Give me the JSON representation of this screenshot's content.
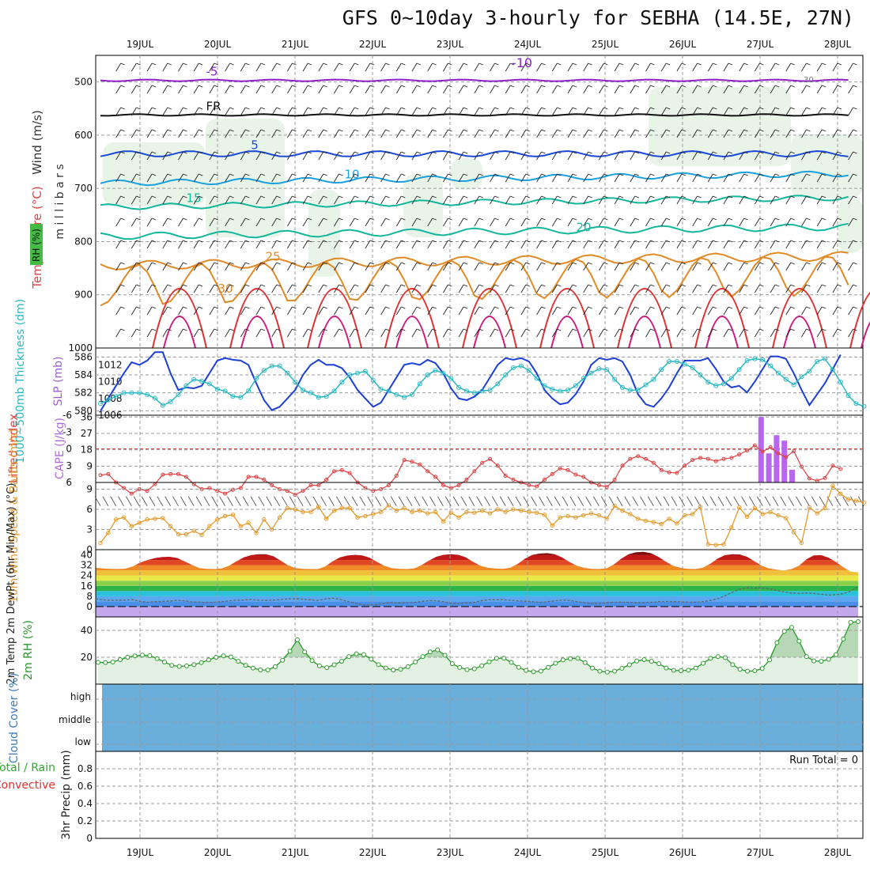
{
  "title": "GFS 0~10day 3-hourly for SEBHA (14.5E, 27N)",
  "dates": [
    "19JUL",
    "20JUL",
    "21JUL",
    "22JUL",
    "23JUL",
    "24JUL",
    "25JUL",
    "26JUL",
    "27JUL",
    "28JUL"
  ],
  "colors": {
    "grid": "#9a9a9a",
    "slp": "#1c3fd6",
    "thickness": "#2ab8c2",
    "lifted_index": "#e04040",
    "cape": "#b766ee",
    "wind": "#e39a2b",
    "rh": "#2a9a2a",
    "cloud": "#6aaedc",
    "temp_purple": "#8a22c8",
    "temp_blue": "#1c48d8",
    "temp_cyan": "#1aa0dc",
    "temp_teal": "#12b69a",
    "temp_orange": "#e08a26",
    "temp_red": "#e03030",
    "temp_magenta": "#d01a80"
  },
  "chart_data": [
    {
      "panel": "upper-air",
      "type": "heatmap",
      "ylabel": "m i l l i b a r s",
      "legend": [
        "Wind (m/s)",
        "Temperature (°C)",
        "RH (%)"
      ],
      "yticks": [
        500,
        600,
        700,
        800,
        900,
        1000
      ],
      "ylim": [
        450,
        1000
      ],
      "isotherm_labels": [
        "-10",
        "-5",
        "FR",
        "5",
        "10",
        "15",
        "20",
        "25",
        "30"
      ],
      "rh_labels": [
        "30"
      ]
    },
    {
      "panel": "thickness-slp",
      "type": "line",
      "ylabel_left": "1000~500mb Thickness (dm)",
      "ylabel_right": "SLP (mb)",
      "yticks_left": [
        580,
        582,
        584,
        586
      ],
      "yticks_right": [
        1006,
        1008,
        1010,
        1012
      ],
      "ylim_left": [
        579.5,
        587
      ],
      "ylim_right": [
        1006,
        1014
      ],
      "series": [
        {
          "name": "SLP (mb)",
          "axis": "right",
          "values": [
            1006.5,
            1008,
            1009.5,
            1011,
            1012.3,
            1012,
            1012.5,
            1013.5,
            1013.5,
            1011,
            1009,
            1009.3,
            1009.2,
            1009.5,
            1011,
            1012.5,
            1012.8,
            1012.6,
            1012.5,
            1012,
            1009.8,
            1007.8,
            1006.6,
            1007,
            1008,
            1009,
            1010.8,
            1012,
            1012.6,
            1012,
            1012,
            1011.6,
            1010.5,
            1009,
            1008,
            1007,
            1007.5,
            1009,
            1010.5,
            1012,
            1012.2,
            1012,
            1012.6,
            1012.2,
            1011,
            1009.2,
            1008,
            1007.8,
            1008.2,
            1009,
            1010.5,
            1012,
            1012.8,
            1012.6,
            1012.8,
            1012.4,
            1011,
            1009,
            1008,
            1007.3,
            1007.5,
            1008.5,
            1010,
            1012,
            1012.8,
            1012.6,
            1012.8,
            1012.4,
            1010.8,
            1008.5,
            1007.3,
            1007,
            1008,
            1009.3,
            1011,
            1012.5,
            1012.5,
            1012.5,
            1012.8,
            1011.5,
            1010,
            1009.3,
            1009.5,
            1008.7,
            1010,
            1011.5,
            1013,
            1013,
            1012.7,
            1011,
            1009,
            1007.2,
            1008.5,
            1009.8,
            1011.5,
            1013.2
          ]
        },
        {
          "name": "Thickness (dm)",
          "axis": "left",
          "values": [
            580.8,
            581.2,
            581.6,
            582,
            582,
            582,
            581.8,
            581.4,
            580.6,
            581,
            581.8,
            582.8,
            583.5,
            583.3,
            583,
            582.4,
            582.2,
            581.6,
            581.5,
            582.2,
            583.6,
            584.5,
            585,
            585,
            584.2,
            583.2,
            582.3,
            582,
            581.5,
            581.6,
            582.2,
            583.2,
            584,
            584.2,
            584.4,
            583.4,
            582.4,
            582.2,
            581.8,
            581.5,
            581.8,
            583,
            584,
            584.5,
            584.2,
            583.6,
            582.6,
            582.2,
            582,
            582.2,
            582.3,
            583,
            584,
            584.8,
            585,
            584.5,
            583.6,
            582.8,
            582.4,
            582.2,
            582.3,
            582.8,
            583.6,
            584.2,
            584.7,
            584.6,
            583.5,
            582.6,
            582.3,
            582.3,
            582.9,
            583.5,
            584.6,
            585.5,
            585.5,
            585.2,
            584.8,
            584,
            583.2,
            582.8,
            583,
            583.6,
            584.6,
            585.6,
            585.8,
            585.7,
            585,
            584.2,
            583.5,
            582.9,
            583.8,
            584.4,
            585.5,
            585.8,
            584.6,
            583.2,
            581.7,
            580.8,
            580.5
          ]
        }
      ]
    },
    {
      "panel": "cape-lifted-index",
      "type": "bar",
      "ylabel_left": "Lifted Index",
      "ylabel_right": "CAPE (J/kg)",
      "yticks_left": [
        -6,
        -3,
        0,
        3,
        6
      ],
      "yticks_right": [
        9,
        18,
        27,
        36
      ],
      "ylim_left": [
        6,
        -6
      ],
      "ylim_right": [
        0,
        37
      ],
      "cape_bars_day": [
        27.1,
        27.2,
        27.3,
        27.4,
        27.5
      ],
      "cape_bars_value": [
        36,
        16,
        26,
        23,
        7
      ],
      "lifted_index": [
        4.7,
        4.5,
        6,
        7,
        8,
        7.2,
        7.5,
        6.3,
        4.6,
        4.5,
        4.5,
        5,
        6.3,
        7.2,
        7,
        7.5,
        8,
        7.3,
        7,
        5,
        5,
        5.5,
        6.5,
        7.2,
        7.5,
        8.2,
        7.5,
        6.5,
        6.5,
        5.5,
        4,
        3.8,
        4.3,
        6,
        7,
        7.5,
        7.2,
        6.5,
        4.8,
        2,
        2.3,
        2.8,
        4,
        5,
        6.5,
        7,
        6.5,
        5.5,
        4,
        2.5,
        1.8,
        3,
        4.8,
        5.5,
        6,
        6.5,
        6.7,
        5.5,
        4.5,
        3.5,
        3.8,
        4.6,
        5,
        6,
        6.5,
        6.8,
        5.5,
        3,
        1.8,
        1.3,
        1.8,
        2.5,
        3.8,
        4.2,
        4.3,
        3,
        2,
        1.6,
        1.8,
        2.2,
        1.8,
        1.6,
        1,
        0.3,
        -0.6,
        0.5,
        -0.3,
        0.8,
        1.5,
        0.4,
        3.2,
        5.3,
        5.7,
        5.2,
        3,
        3.6
      ]
    },
    {
      "panel": "10m-wind",
      "type": "line",
      "ylabel": "10m Wind Speed & Barbs (m/s)",
      "yticks": [
        0,
        3,
        6,
        9
      ],
      "ylim": [
        0,
        10
      ],
      "series": [
        {
          "name": "Speed",
          "values": [
            1,
            2.5,
            4.5,
            4.8,
            3.5,
            4,
            4.5,
            4.6,
            4.7,
            3.5,
            2.3,
            2.3,
            2.8,
            2.2,
            3.5,
            4.5,
            5,
            5.2,
            3.5,
            4,
            2.5,
            4.5,
            3,
            4.8,
            6.2,
            6,
            5.6,
            5.6,
            6.4,
            4.6,
            5.8,
            6.2,
            6.2,
            4.8,
            5,
            5.3,
            5.6,
            6.6,
            5.8,
            6.2,
            5.6,
            5.8,
            5.4,
            5.6,
            4.2,
            5.5,
            4.8,
            5.6,
            5.5,
            5.8,
            5.4,
            6,
            5.6,
            6,
            5.8,
            5.6,
            5.5,
            5.2,
            3.6,
            4.8,
            5,
            4.8,
            5.1,
            5.4,
            5.1,
            4.6,
            6.5,
            5.8,
            5.3,
            4.6,
            4.3,
            4.1,
            3.8,
            4.6,
            3.9,
            5.1,
            5.3,
            6.4,
            0.8,
            0.7,
            0.8,
            3.3,
            6.3,
            4.9,
            6.2,
            5.3,
            5.6,
            5.1,
            4.7,
            2.6,
            1,
            6.3,
            5.4,
            6.2,
            9.5,
            8.3,
            7.5,
            7.3,
            7
          ]
        }
      ]
    },
    {
      "panel": "2m-temp",
      "type": "area",
      "ylabel": "2m Temp 2m DewPt (6hr Min/Max) (°C)",
      "yticks": [
        0,
        8,
        16,
        24,
        32,
        40
      ],
      "ylim": [
        -8,
        44
      ],
      "series": [
        {
          "name": "2m Temp",
          "values": [
            30,
            29.5,
            29.2,
            29,
            29.3,
            31,
            34,
            36,
            37.5,
            38.3,
            38.5,
            37.6,
            35,
            32.2,
            29.8,
            29.2,
            29,
            29.5,
            31.5,
            35,
            38,
            39.8,
            40.5,
            40.5,
            39,
            35.5,
            31.8,
            29.8,
            29.2,
            29,
            29,
            31,
            35,
            38,
            39.5,
            40,
            39.6,
            37.8,
            34.5,
            31.5,
            29.8,
            29.2,
            29,
            29.5,
            32,
            35.5,
            38.5,
            40,
            40.5,
            40,
            38,
            34.5,
            31.5,
            30,
            29.5,
            29.2,
            30,
            33,
            37,
            40,
            41,
            41.3,
            40.5,
            38,
            34.5,
            31.5,
            30,
            29.2,
            29,
            29.6,
            32.5,
            37,
            40.5,
            42,
            42.3,
            41.3,
            38.5,
            34.8,
            31.5,
            30,
            29.2,
            29,
            30,
            33,
            37,
            39.8,
            40.5,
            40.3,
            38.5,
            35,
            31.5,
            29.5,
            28.5,
            28,
            29,
            31.5,
            36.5,
            39.6,
            39.8,
            37.8,
            34.5,
            30.5,
            27,
            26.5
          ]
        },
        {
          "name": "2m DewPt",
          "values": [
            6,
            5.2,
            4.8,
            5,
            5,
            5.4,
            4,
            3.5,
            3.8,
            4,
            4.3,
            4.8,
            4.5,
            3.6,
            3.5,
            3,
            3.4,
            3.8,
            4.4,
            5,
            5,
            5.5,
            5,
            4.8,
            5,
            5.4,
            6,
            6,
            5.7,
            5.2,
            4.8,
            5.8,
            6.5,
            5.6,
            4,
            2.8,
            1.5,
            1.2,
            1.5,
            2.5,
            3,
            2.8,
            3,
            3.2,
            4,
            4.6,
            4.5,
            3.8,
            2.5,
            2.3,
            2.8,
            3,
            4.4,
            5.2,
            5.4,
            5.3,
            4.9,
            4.4,
            4.1,
            3.8,
            3.4,
            3.7,
            4.5,
            5,
            4.8,
            3.8,
            3.1,
            2.3,
            2.3,
            3,
            3.4,
            3.5,
            3.3,
            2.9,
            3,
            3.3,
            3.8,
            3.9,
            3.9,
            3.7,
            3.5,
            3.4,
            3.8,
            4.7,
            6,
            8.3,
            11,
            13.5,
            14.5,
            14.2,
            14.5,
            13.7,
            12.5,
            11.3,
            10.4,
            10.2,
            10.5,
            10.1,
            9.5,
            8.8,
            9.2,
            10,
            12,
            15.3
          ]
        }
      ]
    },
    {
      "panel": "2m-rh",
      "type": "area",
      "ylabel": "2m RH (%)",
      "yticks": [
        20,
        40
      ],
      "ylim": [
        0,
        50
      ],
      "series": [
        {
          "name": "2m RH",
          "values": [
            16.2,
            16,
            16.5,
            18.2,
            20,
            21,
            21.6,
            21.2,
            19,
            16.5,
            14,
            13.2,
            13.6,
            14.5,
            16,
            18,
            20,
            21,
            20.2,
            17,
            14,
            12,
            10.6,
            10.5,
            13,
            17.8,
            24.5,
            33,
            24,
            17.5,
            13.6,
            12.3,
            14.4,
            17,
            20.5,
            22.6,
            22,
            18.6,
            14.5,
            12,
            10.5,
            11,
            13,
            16.5,
            20.5,
            24,
            25.5,
            21.5,
            15.2,
            12.4,
            10.8,
            11.4,
            13.7,
            16.6,
            19.2,
            19.3,
            16.2,
            12.5,
            10.2,
            9.2,
            9.7,
            12.5,
            15.6,
            18,
            19,
            19.2,
            16,
            12,
            9.6,
            9,
            9.7,
            11.8,
            14.4,
            17.2,
            18.2,
            17,
            15.2,
            12,
            10.3,
            10,
            10.4,
            12,
            15.5,
            19.2,
            20.5,
            19.7,
            14.5,
            11,
            9.6,
            9.9,
            11.6,
            18,
            30.8,
            39.3,
            42.2,
            32,
            20.5,
            17.3,
            17,
            18.5,
            22,
            33.5,
            46,
            46.5
          ]
        }
      ]
    },
    {
      "panel": "cloud-cover",
      "type": "heatmap",
      "ylabel": "Cloud Cover (%)",
      "yticks": [
        "high",
        "middle",
        "low"
      ],
      "cover_percent": 100
    },
    {
      "panel": "precip",
      "type": "bar",
      "ylabel": "3hr Precip (mm)",
      "legend": [
        "Total / Rain",
        "Convective"
      ],
      "yticks": [
        0,
        0.2,
        0.4,
        0.6,
        0.8
      ],
      "ylim": [
        0,
        1
      ],
      "annotation": "Run Total = 0",
      "values": []
    }
  ]
}
